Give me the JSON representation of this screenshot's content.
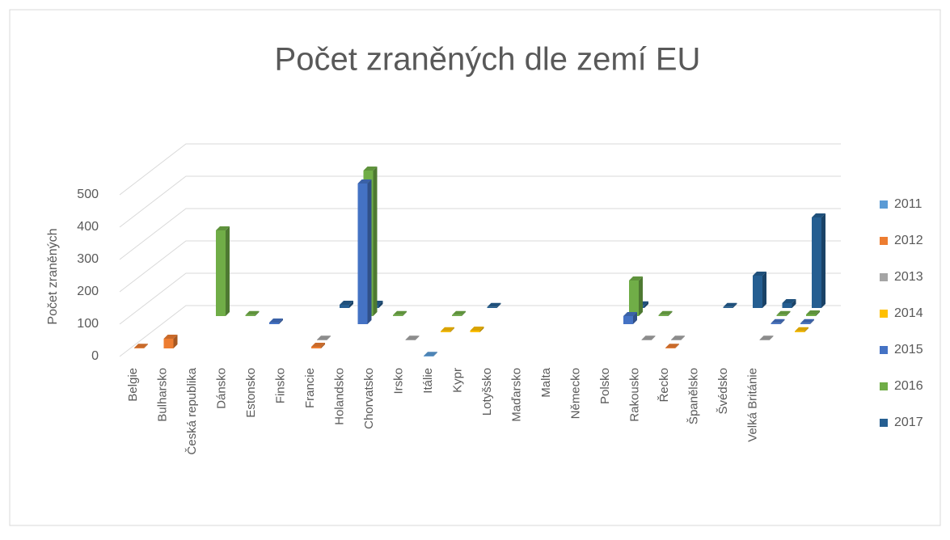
{
  "chart_data": {
    "type": "bar3d",
    "title": "Počet zraněných dle zemí EU",
    "y_axis_label": "Počet zraněných",
    "categories": [
      "Belgie",
      "Bulharsko",
      "Česká republika",
      "Dánsko",
      "Estonsko",
      "Finsko",
      "Francie",
      "Holandsko",
      "Chorvatsko",
      "Irsko",
      "Itálie",
      "Kypr",
      "Lotyšsko",
      "Maďarsko",
      "Malta",
      "Německo",
      "Polsko",
      "Rakousko",
      "Řecko",
      "Španělsko",
      "Švédsko",
      "Velká Británie",
      null
    ],
    "series": [
      {
        "name": "2011",
        "color": "#5b9bd5",
        "values": [
          null,
          null,
          null,
          null,
          null,
          null,
          null,
          null,
          null,
          null,
          2,
          null,
          null,
          null,
          null,
          null,
          null,
          null,
          null,
          null,
          null,
          null,
          null
        ]
      },
      {
        "name": "2012",
        "color": "#ed7d31",
        "values": [
          2,
          30,
          null,
          null,
          null,
          null,
          5,
          null,
          null,
          null,
          null,
          null,
          null,
          null,
          null,
          null,
          null,
          null,
          2,
          null,
          null,
          null,
          null
        ]
      },
      {
        "name": "2013",
        "color": "#a5a5a5",
        "values": [
          null,
          null,
          null,
          null,
          null,
          null,
          2,
          null,
          null,
          2,
          null,
          null,
          null,
          null,
          null,
          null,
          null,
          2,
          2,
          null,
          null,
          2,
          null
        ]
      },
      {
        "name": "2014",
        "color": "#ffc000",
        "values": [
          null,
          null,
          null,
          null,
          null,
          null,
          null,
          null,
          null,
          null,
          3,
          5,
          null,
          null,
          null,
          null,
          null,
          null,
          null,
          null,
          null,
          null,
          3
        ]
      },
      {
        "name": "2015",
        "color": "#4472c4",
        "values": [
          null,
          null,
          null,
          null,
          5,
          null,
          null,
          435,
          null,
          null,
          null,
          null,
          null,
          null,
          null,
          null,
          25,
          null,
          null,
          null,
          null,
          3,
          3
        ]
      },
      {
        "name": "2016",
        "color": "#70ad47",
        "values": [
          null,
          null,
          265,
          3,
          null,
          null,
          null,
          450,
          3,
          null,
          3,
          null,
          null,
          null,
          null,
          null,
          110,
          3,
          null,
          null,
          null,
          3,
          5
        ]
      },
      {
        "name": "2017",
        "color": "#255e91",
        "values": [
          null,
          null,
          null,
          null,
          null,
          null,
          10,
          10,
          null,
          null,
          null,
          3,
          null,
          null,
          null,
          null,
          8,
          null,
          null,
          3,
          100,
          15,
          280
        ]
      }
    ],
    "ylim": [
      0,
      500
    ],
    "yticks": [
      0,
      100,
      200,
      300,
      400,
      500
    ],
    "grid": true,
    "legend": "right"
  }
}
